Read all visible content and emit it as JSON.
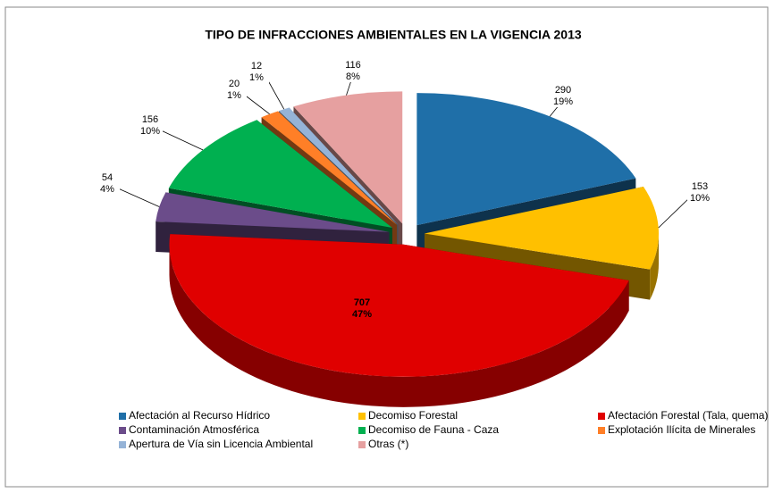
{
  "chart_data": {
    "type": "pie",
    "title": "TIPO DE INFRACCIONES AMBIENTALES EN LA VIGENCIA 2013",
    "categories": [
      "Afectación al Recurso Hídrico",
      "Decomiso Forestal",
      "Afectación Forestal (Tala, quema)",
      "Contaminación Atmosférica",
      "Decomiso de Fauna - Caza",
      "Explotación Ilícita de Minerales",
      "Apertura de Vía sin Licencia Ambiental",
      "Otras (*)"
    ],
    "values": [
      290,
      153,
      707,
      54,
      156,
      20,
      12,
      116
    ],
    "percent_labels": [
      "19%",
      "10%",
      "47%",
      "4%",
      "10%",
      "1%",
      "1%",
      "8%"
    ],
    "colors": [
      "#1f6fa8",
      "#ffc000",
      "#e00000",
      "#6b4c8a",
      "#00b050",
      "#ff7f27",
      "#95b3d7",
      "#e6a0a0"
    ],
    "legend": "bottom"
  }
}
